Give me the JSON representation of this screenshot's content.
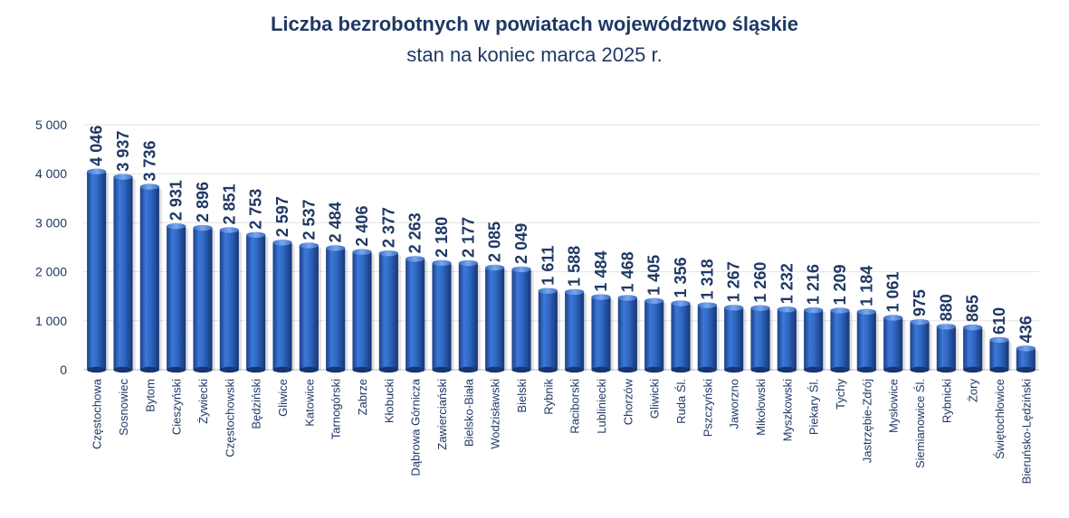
{
  "chart_data": {
    "type": "bar",
    "title": "Liczba bezrobotnych w powiatach województwo śląskie",
    "subtitle": "stan na koniec marca 2025 r.",
    "xlabel": "",
    "ylabel": "",
    "ylim": [
      0,
      5000
    ],
    "yticks": [
      0,
      1000,
      2000,
      3000,
      4000,
      5000
    ],
    "ytick_labels": [
      "0",
      "1 000",
      "2 000",
      "3 000",
      "4 000",
      "5 000"
    ],
    "grid": true,
    "bar_color": "#2e63b8",
    "categories": [
      "Częstochowa",
      "Sosnowiec",
      "Bytom",
      "Cieszyński",
      "Żywiecki",
      "Częstochowski",
      "Będziński",
      "Gliwice",
      "Katowice",
      "Tarnogórski",
      "Zabrze",
      "Kłobucki",
      "Dąbrowa Górnicza",
      "Zawierciański",
      "Bielsko-Biała",
      "Wodzisławski",
      "Bielski",
      "Rybnik",
      "Raciborski",
      "Lubliniecki",
      "Chorzów",
      "Gliwicki",
      "Ruda Śl.",
      "Pszczyński",
      "Jaworzno",
      "Mikołowski",
      "Myszkowski",
      "Piekary Śl.",
      "Tychy",
      "Jastrzębie-Zdrój",
      "Mysłowice",
      "Siemianowice Śl.",
      "Rybnicki",
      "Żory",
      "Świętochłowice",
      "Bieruńsko-Lędziński"
    ],
    "values": [
      4046,
      3937,
      3736,
      2931,
      2896,
      2851,
      2753,
      2597,
      2537,
      2484,
      2406,
      2377,
      2263,
      2180,
      2177,
      2085,
      2049,
      1611,
      1588,
      1484,
      1468,
      1405,
      1356,
      1318,
      1267,
      1260,
      1232,
      1216,
      1209,
      1184,
      1061,
      975,
      880,
      865,
      610,
      436
    ],
    "value_labels": [
      "4 046",
      "3 937",
      "3 736",
      "2 931",
      "2 896",
      "2 851",
      "2 753",
      "2 597",
      "2 537",
      "2 484",
      "2 406",
      "2 377",
      "2 263",
      "2 180",
      "2 177",
      "2 085",
      "2 049",
      "1 611",
      "1 588",
      "1 484",
      "1 468",
      "1 405",
      "1 356",
      "1 318",
      "1 267",
      "1 260",
      "1 232",
      "1 216",
      "1 209",
      "1 184",
      "1 061",
      "975",
      "880",
      "865",
      "610",
      "436"
    ]
  }
}
